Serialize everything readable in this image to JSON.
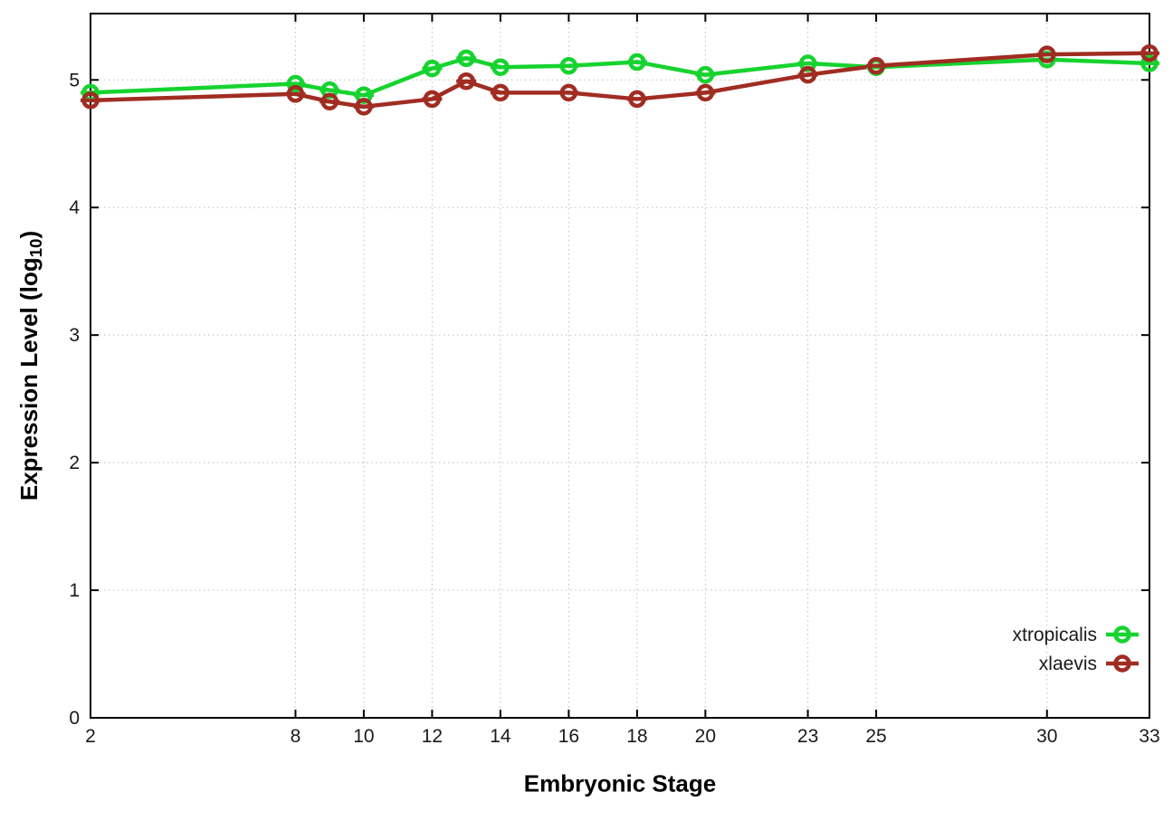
{
  "figure": {
    "background": "#ffffff",
    "xlabel": "Embryonic Stage",
    "ylabel_prefix": "Expression Level (log",
    "ylabel_sub": "10",
    "ylabel_suffix": ")"
  },
  "legend": {
    "entries": [
      "xtropicalis",
      "xlaevis"
    ]
  },
  "colors": {
    "xtropicalis": "#16d32f",
    "xlaevis": "#a02c22",
    "border": "#000000",
    "grid": "#bfbfbf",
    "tick_text": "#1a1a1a"
  },
  "chart_data": {
    "type": "line",
    "title": "",
    "xlabel": "Embryonic Stage",
    "ylabel": "Expression Level (log10)",
    "x": [
      2,
      8,
      9,
      10,
      12,
      13,
      14,
      16,
      18,
      20,
      23,
      25,
      30,
      33
    ],
    "series": [
      {
        "name": "xtropicalis",
        "color": "#16d32f",
        "marker": "open-circle-errorbar",
        "values": [
          4.9,
          4.97,
          4.92,
          4.88,
          5.09,
          5.17,
          5.1,
          5.11,
          5.14,
          5.04,
          5.13,
          5.1,
          5.16,
          5.13
        ]
      },
      {
        "name": "xlaevis",
        "color": "#a02c22",
        "marker": "open-circle-errorbar",
        "values": [
          4.84,
          4.89,
          4.83,
          4.79,
          4.85,
          4.99,
          4.9,
          4.9,
          4.85,
          4.9,
          5.04,
          5.11,
          5.2,
          5.21
        ]
      }
    ],
    "xticks": [
      2,
      8,
      10,
      12,
      14,
      16,
      18,
      20,
      23,
      25,
      30,
      33
    ],
    "yticks": [
      0,
      1,
      2,
      3,
      4,
      5
    ],
    "xlim": [
      2,
      33
    ],
    "ylim": [
      0,
      5.52
    ],
    "grid": true,
    "grid_style": "dotted",
    "legend_position": "inside-bottom-right",
    "draw_order": [
      "xtropicalis",
      "xlaevis"
    ]
  }
}
